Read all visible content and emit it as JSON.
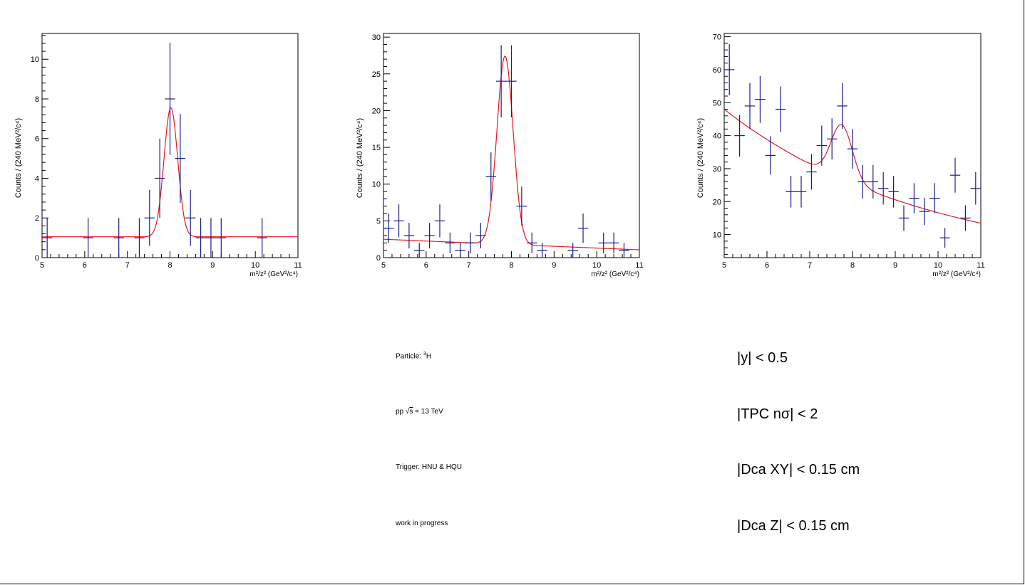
{
  "colors": {
    "points": "#1b1b8f",
    "fit": "#e8181c",
    "axis": "#000000"
  },
  "chart_data": [
    {
      "type": "scatter",
      "title": "",
      "xlabel": "m²/z² (GeV²/c⁴)",
      "ylabel": "Counts / (240 MeV²/c⁴)",
      "xlim": [
        5,
        11
      ],
      "ylim": [
        0,
        11.3
      ],
      "xticks": [
        5,
        6,
        7,
        8,
        9,
        10,
        11
      ],
      "yticks": [
        0,
        2,
        4,
        6,
        8,
        10
      ],
      "bin_width": 0.24,
      "points": [
        {
          "x": 5.12,
          "y": 1,
          "err": 1
        },
        {
          "x": 6.08,
          "y": 1,
          "err": 1
        },
        {
          "x": 6.8,
          "y": 1,
          "err": 1
        },
        {
          "x": 7.28,
          "y": 1,
          "err": 1
        },
        {
          "x": 7.52,
          "y": 2,
          "err": 1.41
        },
        {
          "x": 7.76,
          "y": 4,
          "err": 2
        },
        {
          "x": 8.0,
          "y": 8,
          "err": 2.83
        },
        {
          "x": 8.24,
          "y": 5,
          "err": 2.24
        },
        {
          "x": 8.48,
          "y": 2,
          "err": 1.41
        },
        {
          "x": 8.72,
          "y": 1,
          "err": 1
        },
        {
          "x": 8.96,
          "y": 1,
          "err": 1
        },
        {
          "x": 9.2,
          "y": 1,
          "err": 1
        },
        {
          "x": 10.16,
          "y": 1,
          "err": 1
        }
      ],
      "fit": {
        "type": "gaussian+linear",
        "background": [
          1.05,
          0.0
        ],
        "amplitude": 6.5,
        "mean": 8.02,
        "sigma": 0.16
      }
    },
    {
      "type": "scatter",
      "title": "",
      "xlabel": "m²/z² (GeV²/c⁴)",
      "ylabel": "Counts / (240 MeV²/c⁴)",
      "xlim": [
        5,
        11
      ],
      "ylim": [
        0,
        30.5
      ],
      "xticks": [
        5,
        6,
        7,
        8,
        9,
        10,
        11
      ],
      "yticks": [
        0,
        5,
        10,
        15,
        20,
        25,
        30
      ],
      "bin_width": 0.24,
      "points": [
        {
          "x": 5.12,
          "y": 4,
          "err": 2
        },
        {
          "x": 5.36,
          "y": 5,
          "err": 2.24
        },
        {
          "x": 5.6,
          "y": 3,
          "err": 1.73
        },
        {
          "x": 5.84,
          "y": 1,
          "err": 1
        },
        {
          "x": 6.08,
          "y": 3,
          "err": 1.73
        },
        {
          "x": 6.32,
          "y": 5,
          "err": 2.24
        },
        {
          "x": 6.56,
          "y": 2,
          "err": 1.41
        },
        {
          "x": 6.8,
          "y": 1,
          "err": 1
        },
        {
          "x": 7.04,
          "y": 2,
          "err": 1.41
        },
        {
          "x": 7.28,
          "y": 3,
          "err": 1.73
        },
        {
          "x": 7.52,
          "y": 11,
          "err": 3.32
        },
        {
          "x": 7.76,
          "y": 24,
          "err": 4.9
        },
        {
          "x": 8.0,
          "y": 24,
          "err": 4.9
        },
        {
          "x": 8.24,
          "y": 7,
          "err": 2.65
        },
        {
          "x": 8.48,
          "y": 2,
          "err": 1.41
        },
        {
          "x": 8.72,
          "y": 1,
          "err": 1
        },
        {
          "x": 9.44,
          "y": 1,
          "err": 1
        },
        {
          "x": 9.68,
          "y": 4,
          "err": 2
        },
        {
          "x": 10.16,
          "y": 2,
          "err": 1.41
        },
        {
          "x": 10.4,
          "y": 2,
          "err": 1.41
        },
        {
          "x": 10.64,
          "y": 1,
          "err": 1
        }
      ],
      "fit": {
        "type": "gaussian+linear",
        "background": [
          2.5,
          -0.24
        ],
        "amplitude": 25.6,
        "mean": 7.85,
        "sigma": 0.19
      }
    },
    {
      "type": "scatter",
      "title": "",
      "xlabel": "m²/z² (GeV²/c⁴)",
      "ylabel": "Counts / (240 MeV²/c⁴)",
      "xlim": [
        5,
        11
      ],
      "ylim": [
        3,
        71
      ],
      "xticks": [
        5,
        6,
        7,
        8,
        9,
        10,
        11
      ],
      "yticks": [
        10,
        20,
        30,
        40,
        50,
        60,
        70
      ],
      "bin_width": 0.24,
      "points": [
        {
          "x": 5.12,
          "y": 60,
          "err": 7.75
        },
        {
          "x": 5.36,
          "y": 40,
          "err": 6.32
        },
        {
          "x": 5.6,
          "y": 49,
          "err": 7
        },
        {
          "x": 5.84,
          "y": 51,
          "err": 7.14
        },
        {
          "x": 6.08,
          "y": 34,
          "err": 5.83
        },
        {
          "x": 6.32,
          "y": 48,
          "err": 6.93
        },
        {
          "x": 6.56,
          "y": 23,
          "err": 4.8
        },
        {
          "x": 6.8,
          "y": 23,
          "err": 4.8
        },
        {
          "x": 7.04,
          "y": 29,
          "err": 5.39
        },
        {
          "x": 7.28,
          "y": 37,
          "err": 6.08
        },
        {
          "x": 7.52,
          "y": 39,
          "err": 6.24
        },
        {
          "x": 7.76,
          "y": 49,
          "err": 7
        },
        {
          "x": 8.0,
          "y": 36,
          "err": 6
        },
        {
          "x": 8.24,
          "y": 26,
          "err": 5.1
        },
        {
          "x": 8.48,
          "y": 26,
          "err": 5.1
        },
        {
          "x": 8.72,
          "y": 24,
          "err": 4.9
        },
        {
          "x": 8.96,
          "y": 23,
          "err": 4.8
        },
        {
          "x": 9.2,
          "y": 15,
          "err": 3.87
        },
        {
          "x": 9.44,
          "y": 21,
          "err": 4.58
        },
        {
          "x": 9.68,
          "y": 17,
          "err": 4.12
        },
        {
          "x": 9.92,
          "y": 21,
          "err": 4.58
        },
        {
          "x": 10.16,
          "y": 9,
          "err": 3
        },
        {
          "x": 10.4,
          "y": 28,
          "err": 5.29
        },
        {
          "x": 10.64,
          "y": 15,
          "err": 3.87
        },
        {
          "x": 10.88,
          "y": 24,
          "err": 4.9
        }
      ],
      "fit": {
        "type": "gaussian+exponential",
        "background": [
          48,
          0.212
        ],
        "amplitude": 16.5,
        "mean": 7.75,
        "sigma": 0.25
      }
    }
  ],
  "notes": {
    "particle_prefix": "Particle: ",
    "particle_iso": "3",
    "particle_symbol": "H",
    "energy_pre": "pp ",
    "energy_root": "√",
    "energy_s": "s",
    "energy_post": " = 13 TeV",
    "trigger": "Trigger: HNU & HQU",
    "status": "work in progress"
  },
  "cuts": [
    "|y| < 0.5",
    "|TPC nσ| < 2",
    "|Dca XY| < 0.15 cm",
    "|Dca Z| < 0.15 cm"
  ]
}
